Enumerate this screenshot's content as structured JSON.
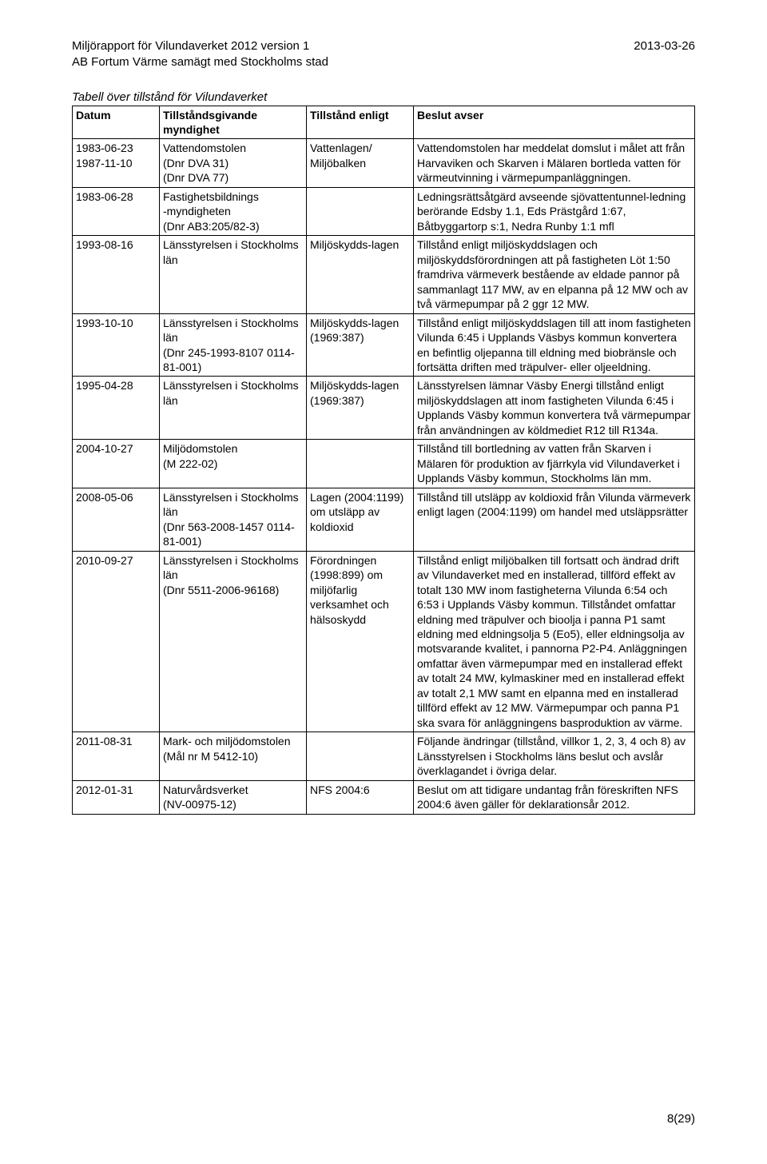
{
  "header": {
    "left_line1": "Miljörapport för Vilundaverket 2012 version 1",
    "left_line2": "AB Fortum Värme samägt med Stockholms stad",
    "right": "2013-03-26"
  },
  "caption": "Tabell över tillstånd för Vilundaverket",
  "columns": {
    "date": "Datum",
    "authority": "Tillståndsgivande myndighet",
    "law": "Tillstånd enligt",
    "decision": "Beslut avser"
  },
  "rows": [
    {
      "date": "1983-06-23\n1987-11-10",
      "authority": "Vattendomstolen\n(Dnr DVA 31)\n(Dnr DVA 77)",
      "law": "Vattenlagen/\nMiljöbalken",
      "decision": "Vattendomstolen har meddelat domslut i målet att från Harvaviken och Skarven i Mälaren bortleda vatten för värmeutvinning i värmepumpanläggningen."
    },
    {
      "date": "1983-06-28",
      "authority": "Fastighetsbildnings\n-myndigheten\n(Dnr AB3:205/82-3)",
      "law": "",
      "decision": "Ledningsrättsåtgärd avseende sjövattentunnel-ledning berörande Edsby 1.1, Eds Prästgård 1:67, Båtbyggartorp s:1, Nedra Runby 1:1 mfl"
    },
    {
      "date": "1993-08-16",
      "authority": "Länsstyrelsen i Stockholms län",
      "law": "Miljöskydds-lagen",
      "decision": "Tillstånd enligt miljöskyddslagen och miljöskyddsförordningen att på fastigheten Löt 1:50 framdriva värmeverk bestående av eldade pannor på sammanlagt 117 MW, av en elpanna på 12 MW och av två värmepumpar på 2 ggr 12 MW."
    },
    {
      "date": "1993-10-10",
      "authority": "Länsstyrelsen i Stockholms län\n(Dnr 245-1993-8107 0114-81-001)",
      "law": "Miljöskydds-lagen (1969:387)",
      "decision": "Tillstånd enligt miljöskyddslagen till att inom fastigheten Vilunda 6:45 i Upplands Väsbys kommun konvertera en befintlig oljepanna till eldning med biobränsle och fortsätta driften med träpulver- eller oljeeldning."
    },
    {
      "date": "1995-04-28",
      "authority": "Länsstyrelsen i Stockholms län",
      "law": "Miljöskydds-lagen (1969:387)",
      "decision": "Länsstyrelsen lämnar Väsby Energi tillstånd enligt miljöskyddslagen att inom fastigheten Vilunda 6:45 i Upplands Väsby kommun konvertera två värmepumpar från användningen av köldmediet R12 till R134a."
    },
    {
      "date": "2004-10-27",
      "authority": "Miljödomstolen\n(M 222-02)",
      "law": "",
      "decision": "Tillstånd till bortledning av vatten från Skarven i Mälaren för produktion av fjärrkyla vid Vilundaverket i Upplands Väsby kommun, Stockholms län mm."
    },
    {
      "date": "2008-05-06",
      "authority": "Länsstyrelsen i Stockholms län\n(Dnr 563-2008-1457 0114-81-001)",
      "law": "Lagen (2004:1199) om utsläpp av koldioxid",
      "decision": "Tillstånd till utsläpp av koldioxid från Vilunda värmeverk enligt lagen (2004:1199) om handel med utsläppsrätter"
    },
    {
      "date": "2010-09-27",
      "authority": "Länsstyrelsen i Stockholms län\n(Dnr 5511-2006-96168)",
      "law": "Förordningen (1998:899) om miljöfarlig verksamhet och hälsoskydd",
      "decision": "Tillstånd enligt miljöbalken till fortsatt och ändrad drift av Vilundaverket med en installerad, tillförd effekt av totalt 130 MW inom fastigheterna Vilunda 6:54 och 6:53 i Upplands Väsby kommun. Tillståndet omfattar eldning med träpulver och bioolja i panna P1 samt eldning med eldningsolja 5 (Eo5), eller eldningsolja av motsvarande kvalitet, i pannorna P2-P4. Anläggningen omfattar även värmepumpar med en installerad effekt av totalt 24 MW, kylmaskiner med en installerad effekt av totalt 2,1 MW samt en elpanna med en installerad tillförd effekt av 12 MW. Värmepumpar och panna P1 ska svara för anläggningens basproduktion av värme."
    },
    {
      "date": "2011-08-31",
      "authority": "Mark- och miljödomstolen\n(Mål nr M 5412-10)",
      "law": "",
      "decision": "Följande ändringar (tillstånd, villkor 1, 2, 3, 4 och 8) av Länsstyrelsen i Stockholms läns beslut och avslår överklagandet i övriga delar."
    },
    {
      "date": "2012-01-31",
      "authority": "Naturvårdsverket\n(NV-00975-12)",
      "law": "NFS 2004:6",
      "decision": "Beslut om att tidigare undantag från föreskriften NFS 2004:6 även gäller för deklarationsår 2012."
    }
  ],
  "page_number": "8(29)"
}
